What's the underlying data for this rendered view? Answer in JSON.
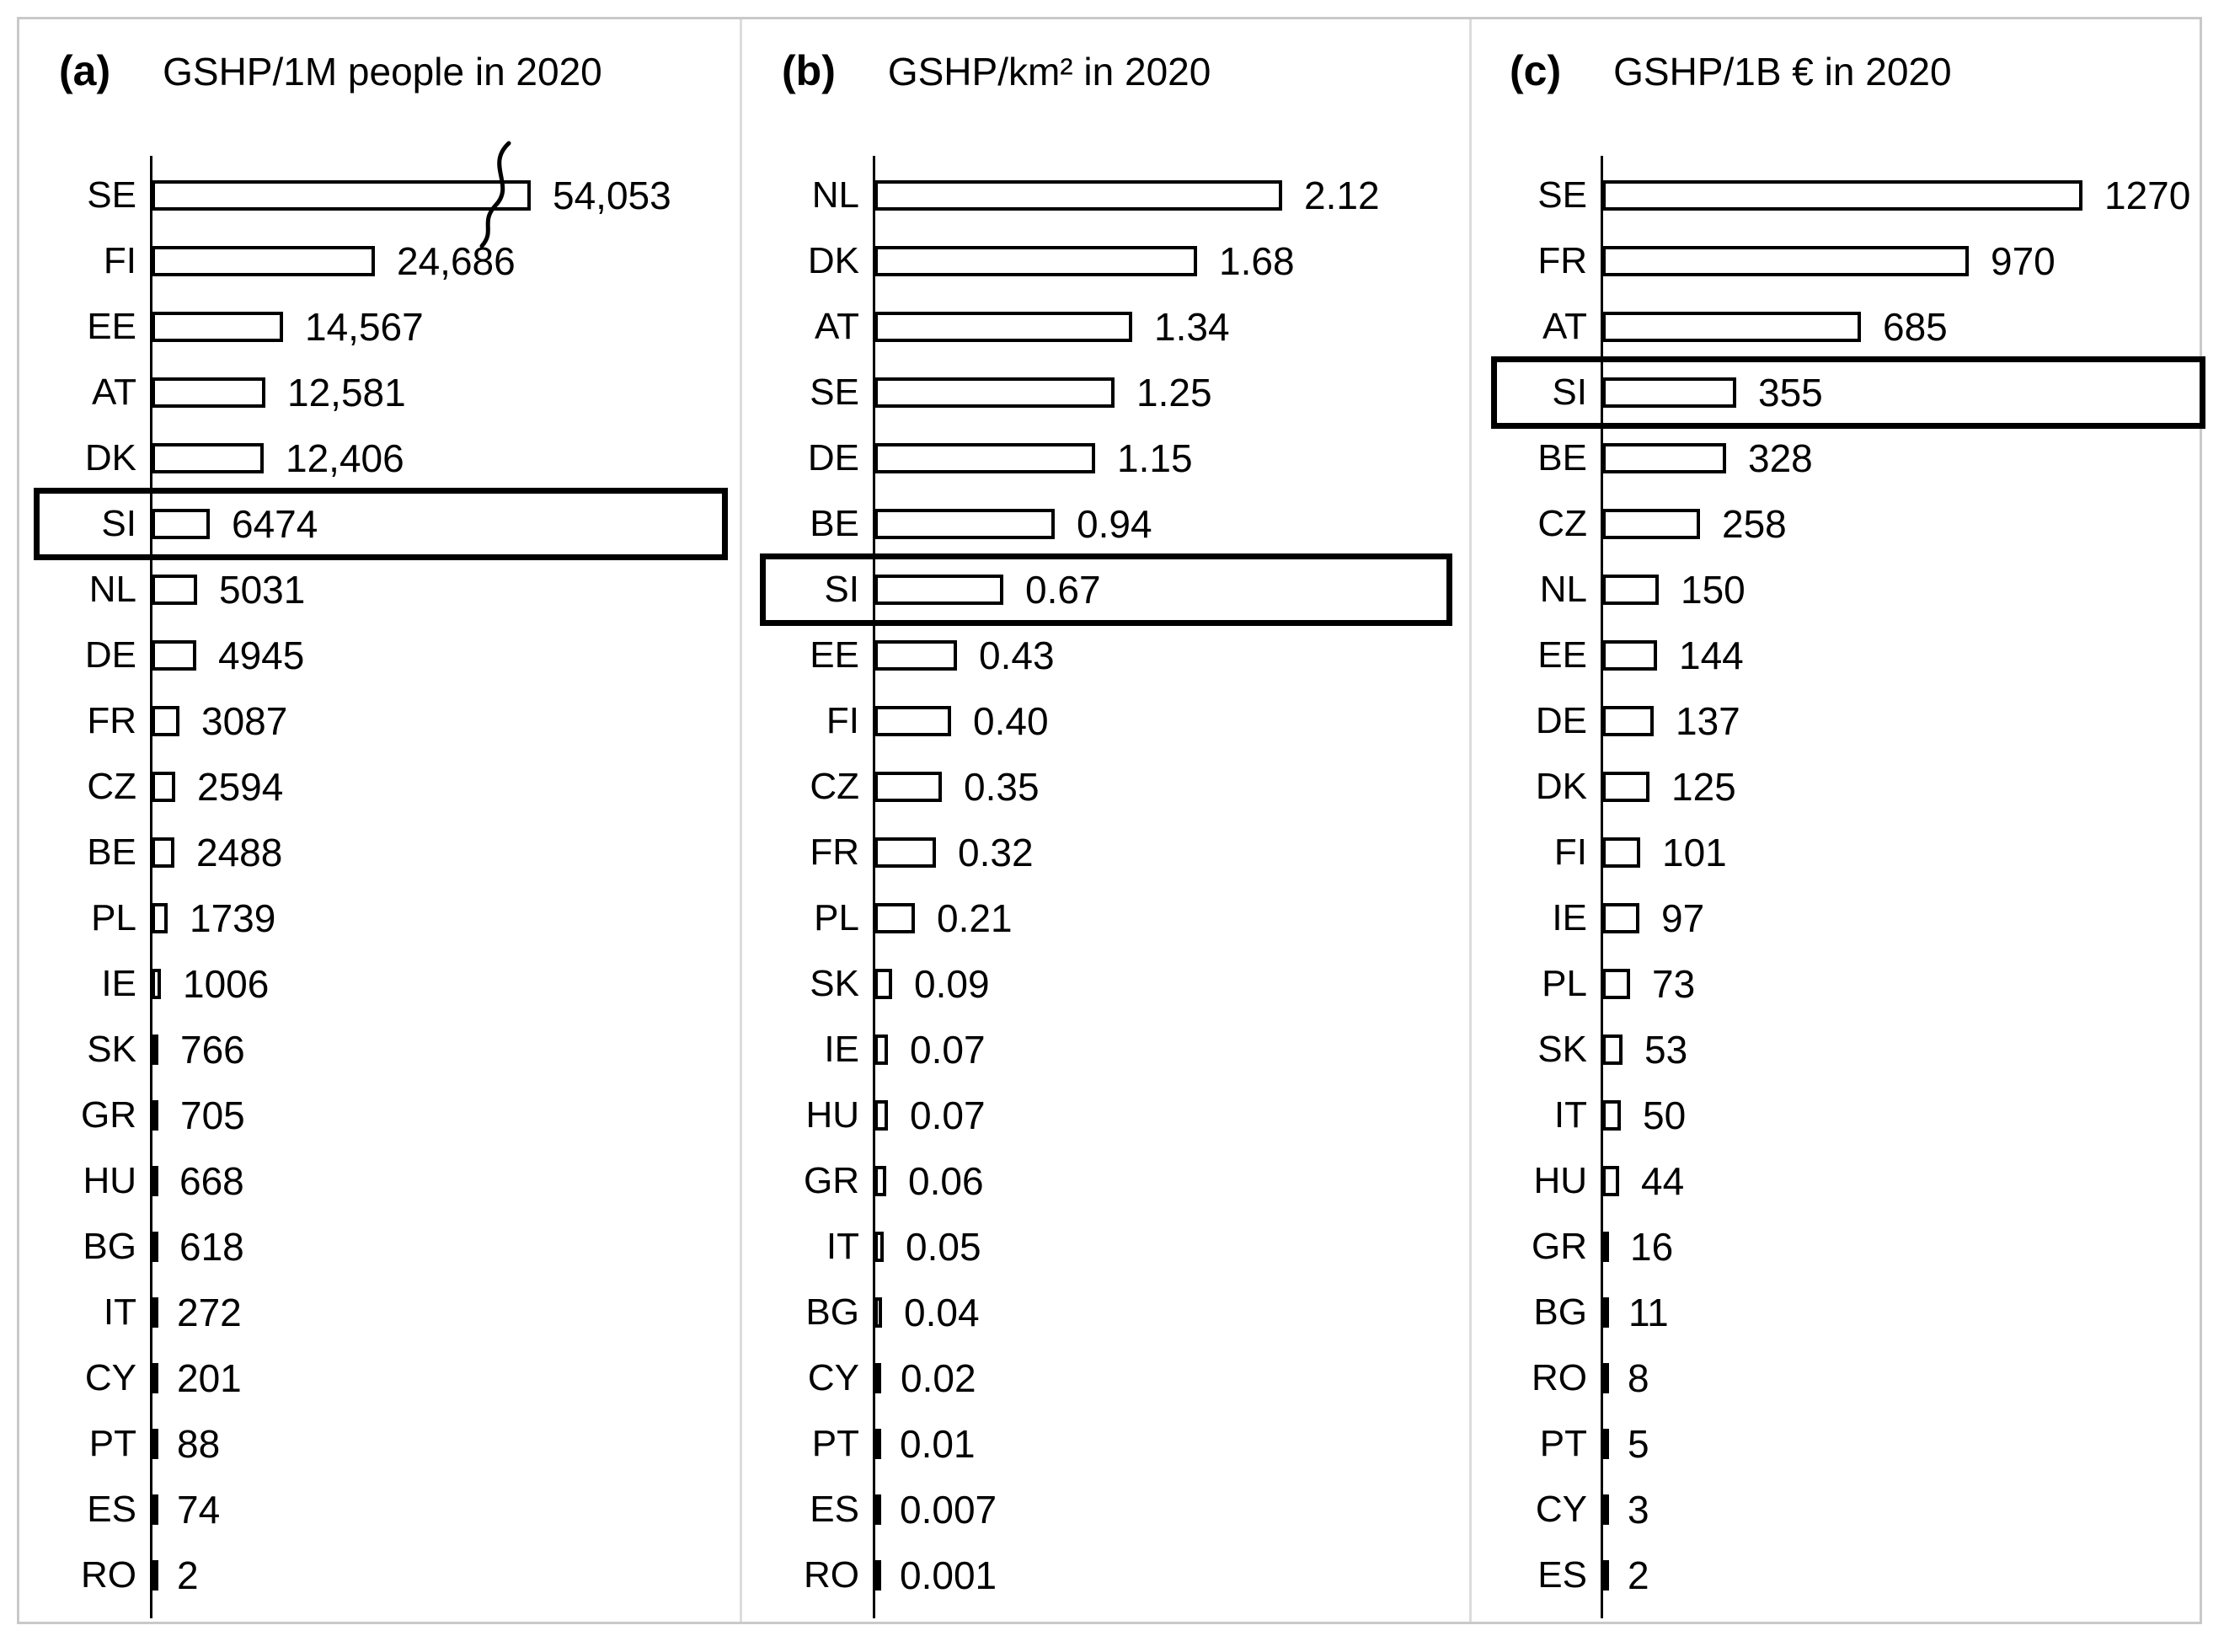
{
  "figure": {
    "background": "#ffffff",
    "frame_border_color": "#c9c9c9",
    "panel_divider_color": "#dcdcdc",
    "bar_fill": "#ffffff",
    "bar_border": "#000000",
    "highlight_border": "#000000",
    "text_color": "#000000"
  },
  "chart_data": [
    {
      "type": "bar",
      "orientation": "horizontal",
      "panel_label": "(a)",
      "title": "GSHP/1M people in 2020",
      "axis_max": 62000,
      "grid": false,
      "legend": false,
      "highlight_category": "SI",
      "axis_break": {
        "category": "SE",
        "drawn_value": 42000
      },
      "rows": [
        {
          "label": "SE",
          "value": 54053,
          "value_label": "54,053"
        },
        {
          "label": "FI",
          "value": 24686,
          "value_label": "24,686"
        },
        {
          "label": "EE",
          "value": 14567,
          "value_label": "14,567"
        },
        {
          "label": "AT",
          "value": 12581,
          "value_label": "12,581"
        },
        {
          "label": "DK",
          "value": 12406,
          "value_label": "12,406"
        },
        {
          "label": "SI",
          "value": 6474,
          "value_label": "6474"
        },
        {
          "label": "NL",
          "value": 5031,
          "value_label": "5031"
        },
        {
          "label": "DE",
          "value": 4945,
          "value_label": "4945"
        },
        {
          "label": "FR",
          "value": 3087,
          "value_label": "3087"
        },
        {
          "label": "CZ",
          "value": 2594,
          "value_label": "2594"
        },
        {
          "label": "BE",
          "value": 2488,
          "value_label": "2488"
        },
        {
          "label": "PL",
          "value": 1739,
          "value_label": "1739"
        },
        {
          "label": "IE",
          "value": 1006,
          "value_label": "1006"
        },
        {
          "label": "SK",
          "value": 766,
          "value_label": "766"
        },
        {
          "label": "GR",
          "value": 705,
          "value_label": "705"
        },
        {
          "label": "HU",
          "value": 668,
          "value_label": "668"
        },
        {
          "label": "BG",
          "value": 618,
          "value_label": "618"
        },
        {
          "label": "IT",
          "value": 272,
          "value_label": "272"
        },
        {
          "label": "CY",
          "value": 201,
          "value_label": "201"
        },
        {
          "label": "PT",
          "value": 88,
          "value_label": "88"
        },
        {
          "label": "ES",
          "value": 74,
          "value_label": "74"
        },
        {
          "label": "RO",
          "value": 2,
          "value_label": "2"
        }
      ]
    },
    {
      "type": "bar",
      "orientation": "horizontal",
      "panel_label": "(b)",
      "title": "GSHP/km² in 2020",
      "axis_max": 2.95,
      "grid": false,
      "legend": false,
      "highlight_category": "SI",
      "rows": [
        {
          "label": "NL",
          "value": 2.12,
          "value_label": "2.12"
        },
        {
          "label": "DK",
          "value": 1.68,
          "value_label": "1.68"
        },
        {
          "label": "AT",
          "value": 1.34,
          "value_label": "1.34"
        },
        {
          "label": "SE",
          "value": 1.25,
          "value_label": "1.25"
        },
        {
          "label": "DE",
          "value": 1.15,
          "value_label": "1.15"
        },
        {
          "label": "BE",
          "value": 0.94,
          "value_label": "0.94"
        },
        {
          "label": "SI",
          "value": 0.67,
          "value_label": "0.67"
        },
        {
          "label": "EE",
          "value": 0.43,
          "value_label": "0.43"
        },
        {
          "label": "FI",
          "value": 0.4,
          "value_label": "0.40"
        },
        {
          "label": "CZ",
          "value": 0.35,
          "value_label": "0.35"
        },
        {
          "label": "FR",
          "value": 0.32,
          "value_label": "0.32"
        },
        {
          "label": "PL",
          "value": 0.21,
          "value_label": "0.21"
        },
        {
          "label": "SK",
          "value": 0.09,
          "value_label": "0.09"
        },
        {
          "label": "IE",
          "value": 0.07,
          "value_label": "0.07"
        },
        {
          "label": "HU",
          "value": 0.07,
          "value_label": "0.07"
        },
        {
          "label": "GR",
          "value": 0.06,
          "value_label": "0.06"
        },
        {
          "label": "IT",
          "value": 0.05,
          "value_label": "0.05"
        },
        {
          "label": "BG",
          "value": 0.04,
          "value_label": "0.04"
        },
        {
          "label": "CY",
          "value": 0.02,
          "value_label": "0.02"
        },
        {
          "label": "PT",
          "value": 0.01,
          "value_label": "0.01"
        },
        {
          "label": "ES",
          "value": 0.007,
          "value_label": "0.007"
        },
        {
          "label": "RO",
          "value": 0.001,
          "value_label": "0.001"
        }
      ]
    },
    {
      "type": "bar",
      "orientation": "horizontal",
      "panel_label": "(c)",
      "title": "GSHP/1B € in 2020",
      "axis_max": 1540,
      "grid": false,
      "legend": false,
      "highlight_category": "SI",
      "rows": [
        {
          "label": "SE",
          "value": 1270,
          "value_label": "1270"
        },
        {
          "label": "FR",
          "value": 970,
          "value_label": "970"
        },
        {
          "label": "AT",
          "value": 685,
          "value_label": "685"
        },
        {
          "label": "SI",
          "value": 355,
          "value_label": "355"
        },
        {
          "label": "BE",
          "value": 328,
          "value_label": "328"
        },
        {
          "label": "CZ",
          "value": 258,
          "value_label": "258"
        },
        {
          "label": "NL",
          "value": 150,
          "value_label": "150"
        },
        {
          "label": "EE",
          "value": 144,
          "value_label": "144"
        },
        {
          "label": "DE",
          "value": 137,
          "value_label": "137"
        },
        {
          "label": "DK",
          "value": 125,
          "value_label": "125"
        },
        {
          "label": "FI",
          "value": 101,
          "value_label": "101"
        },
        {
          "label": "IE",
          "value": 97,
          "value_label": "97"
        },
        {
          "label": "PL",
          "value": 73,
          "value_label": "73"
        },
        {
          "label": "SK",
          "value": 53,
          "value_label": "53"
        },
        {
          "label": "IT",
          "value": 50,
          "value_label": "50"
        },
        {
          "label": "HU",
          "value": 44,
          "value_label": "44"
        },
        {
          "label": "GR",
          "value": 16,
          "value_label": "16"
        },
        {
          "label": "BG",
          "value": 11,
          "value_label": "11"
        },
        {
          "label": "RO",
          "value": 8,
          "value_label": "8"
        },
        {
          "label": "PT",
          "value": 5,
          "value_label": "5"
        },
        {
          "label": "CY",
          "value": 3,
          "value_label": "3"
        },
        {
          "label": "ES",
          "value": 2,
          "value_label": "2"
        }
      ]
    }
  ]
}
